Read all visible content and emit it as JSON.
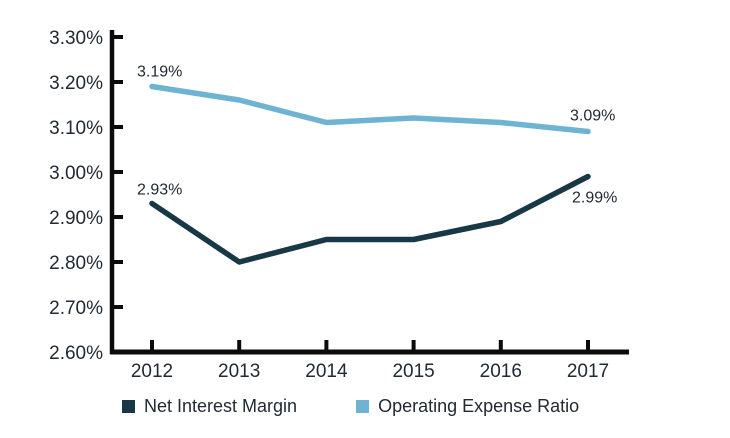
{
  "chart_data": {
    "type": "line",
    "categories": [
      "2012",
      "2013",
      "2014",
      "2015",
      "2016",
      "2017"
    ],
    "series": [
      {
        "name": "Net Interest Margin",
        "color": "#173844",
        "values": [
          2.93,
          2.8,
          2.85,
          2.85,
          2.89,
          2.99
        ]
      },
      {
        "name": "Operating Expense Ratio",
        "color": "#6FB3D2",
        "values": [
          3.19,
          3.16,
          3.11,
          3.12,
          3.11,
          3.09
        ]
      }
    ],
    "y_ticks": [
      {
        "value": 3.3,
        "label": "3.30%"
      },
      {
        "value": 3.2,
        "label": "3.20%"
      },
      {
        "value": 3.1,
        "label": "3.10%"
      },
      {
        "value": 3.0,
        "label": "3.00%"
      },
      {
        "value": 2.9,
        "label": "2.90%"
      },
      {
        "value": 2.8,
        "label": "2.80%"
      },
      {
        "value": 2.7,
        "label": "2.70%"
      },
      {
        "value": 2.6,
        "label": "2.60%"
      }
    ],
    "ylim": [
      2.6,
      3.3
    ],
    "xlabel": "",
    "ylabel": "",
    "title": "",
    "grid": false,
    "legend_position": "bottom",
    "annotations": [
      {
        "series": 1,
        "point": "first",
        "text": "3.19%"
      },
      {
        "series": 1,
        "point": "last",
        "text": "3.09%"
      },
      {
        "series": 0,
        "point": "first",
        "text": "2.93%"
      },
      {
        "series": 0,
        "point": "last",
        "text": "2.99%"
      }
    ],
    "axis_color": "#0B0B0B",
    "text_color": "#212A33"
  },
  "legend": {
    "items": [
      {
        "label": "Net Interest Margin",
        "color": "#173844"
      },
      {
        "label": "Operating Expense Ratio",
        "color": "#6FB3D2"
      }
    ]
  }
}
